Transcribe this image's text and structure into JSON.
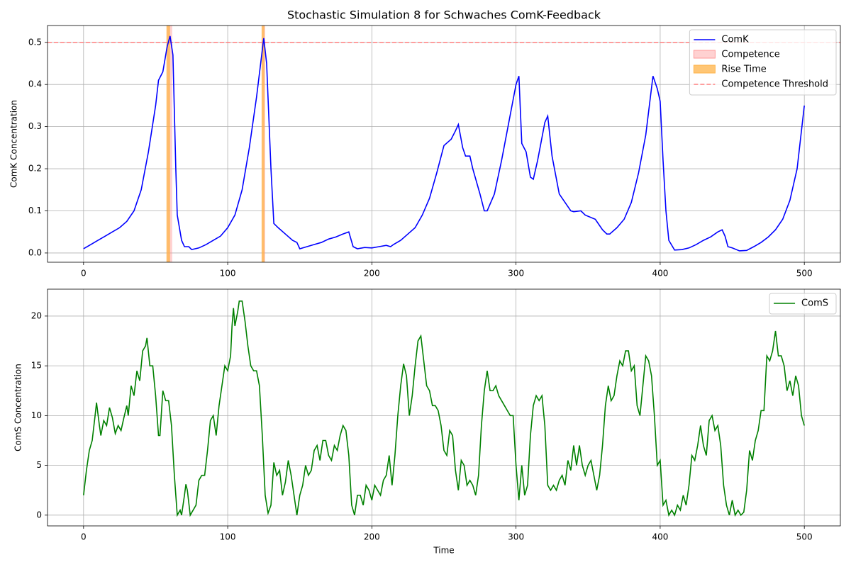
{
  "chart_data": [
    {
      "type": "line",
      "title": "Stochastic Simulation 8 for Schwaches ComK-Feedback",
      "ylabel": "ComK Concentration",
      "xlim": [
        -25,
        525
      ],
      "xticks": [
        0,
        100,
        200,
        300,
        400,
        500
      ],
      "ylim": [
        -0.022,
        0.54
      ],
      "yticks": [
        {
          "value": 0,
          "label": "0.0"
        },
        0.1,
        0.2,
        0.3,
        0.4,
        0.5
      ],
      "grid": true,
      "legend": "upper right",
      "x": [
        0,
        5,
        10,
        15,
        20,
        25,
        30,
        35,
        40,
        45,
        50,
        52,
        55,
        58,
        60,
        62,
        64,
        65,
        68,
        70,
        73,
        75,
        80,
        85,
        90,
        95,
        100,
        105,
        110,
        115,
        120,
        125,
        127,
        130,
        132,
        135,
        140,
        145,
        148,
        150,
        155,
        160,
        165,
        170,
        175,
        180,
        184,
        187,
        190,
        195,
        200,
        205,
        210,
        213,
        215,
        220,
        225,
        230,
        235,
        240,
        245,
        250,
        255,
        258,
        260,
        263,
        265,
        268,
        270,
        275,
        278,
        280,
        285,
        290,
        295,
        300,
        302,
        304,
        307,
        310,
        312,
        315,
        320,
        322,
        325,
        330,
        335,
        338,
        340,
        345,
        348,
        355,
        360,
        363,
        365,
        370,
        375,
        380,
        385,
        390,
        395,
        398,
        400,
        402,
        404,
        406,
        410,
        415,
        420,
        425,
        430,
        435,
        440,
        443,
        445,
        447,
        450,
        455,
        460,
        465,
        470,
        475,
        480,
        485,
        490,
        495,
        500
      ],
      "series": [
        {
          "name": "ComK",
          "color": "#0000ff",
          "values": [
            0.01,
            0.02,
            0.03,
            0.04,
            0.05,
            0.06,
            0.075,
            0.1,
            0.15,
            0.24,
            0.35,
            0.41,
            0.43,
            0.49,
            0.515,
            0.47,
            0.2,
            0.09,
            0.03,
            0.015,
            0.015,
            0.008,
            0.012,
            0.02,
            0.03,
            0.04,
            0.06,
            0.09,
            0.15,
            0.25,
            0.37,
            0.51,
            0.45,
            0.2,
            0.07,
            0.06,
            0.045,
            0.03,
            0.025,
            0.01,
            0.015,
            0.02,
            0.025,
            0.033,
            0.038,
            0.045,
            0.05,
            0.015,
            0.01,
            0.013,
            0.012,
            0.015,
            0.018,
            0.015,
            0.02,
            0.03,
            0.045,
            0.06,
            0.09,
            0.13,
            0.19,
            0.255,
            0.27,
            0.29,
            0.305,
            0.25,
            0.23,
            0.23,
            0.2,
            0.14,
            0.1,
            0.1,
            0.14,
            0.22,
            0.31,
            0.4,
            0.42,
            0.26,
            0.24,
            0.18,
            0.175,
            0.22,
            0.31,
            0.325,
            0.23,
            0.14,
            0.115,
            0.1,
            0.098,
            0.1,
            0.09,
            0.08,
            0.055,
            0.045,
            0.045,
            0.06,
            0.08,
            0.12,
            0.19,
            0.28,
            0.42,
            0.39,
            0.36,
            0.22,
            0.1,
            0.03,
            0.007,
            0.008,
            0.012,
            0.02,
            0.03,
            0.038,
            0.05,
            0.055,
            0.04,
            0.015,
            0.012,
            0.005,
            0.006,
            0.015,
            0.025,
            0.038,
            0.055,
            0.08,
            0.125,
            0.2,
            0.35
          ]
        }
      ],
      "spans": [
        {
          "name": "Competence",
          "color": "#ff9999",
          "ranges": [
            [
              58,
              61.5
            ],
            [
              124,
              126
            ]
          ]
        },
        {
          "name": "Rise Time",
          "color": "#ffb347",
          "ranges": [
            [
              57.5,
              60
            ],
            [
              123.5,
              125.5
            ]
          ]
        }
      ],
      "hlines": [
        {
          "name": "Competence Threshold",
          "value": 0.5,
          "color": "#ff7f7f"
        }
      ]
    },
    {
      "type": "line",
      "xlabel": "Time",
      "ylabel": "ComS Concentration",
      "xlim": [
        -25,
        525
      ],
      "xticks": [
        0,
        100,
        200,
        300,
        400,
        500
      ],
      "ylim": [
        -1.08,
        22.7
      ],
      "yticks": [
        0,
        5,
        10,
        15,
        20
      ],
      "grid": true,
      "legend": "upper right",
      "x": [
        0,
        2,
        4,
        6,
        8,
        9,
        11,
        12,
        14,
        16,
        18,
        20,
        22,
        24,
        26,
        28,
        30,
        31,
        33,
        35,
        37,
        39,
        41,
        43,
        44,
        46,
        48,
        50,
        52,
        53,
        55,
        57,
        59,
        61,
        63,
        65,
        67,
        68,
        70,
        71,
        72,
        74,
        76,
        78,
        80,
        82,
        84,
        86,
        88,
        90,
        92,
        94,
        96,
        98,
        100,
        102,
        103,
        104,
        105,
        107,
        108,
        110,
        112,
        114,
        116,
        118,
        120,
        122,
        124,
        126,
        128,
        130,
        132,
        134,
        136,
        138,
        140,
        142,
        144,
        146,
        148,
        150,
        152,
        154,
        156,
        158,
        160,
        162,
        164,
        166,
        168,
        170,
        172,
        174,
        176,
        178,
        180,
        182,
        184,
        186,
        188,
        190,
        192,
        194,
        196,
        198,
        200,
        202,
        204,
        206,
        208,
        210,
        212,
        214,
        216,
        218,
        220,
        222,
        224,
        226,
        228,
        230,
        232,
        234,
        236,
        238,
        240,
        242,
        244,
        246,
        248,
        250,
        252,
        254,
        256,
        258,
        260,
        262,
        264,
        266,
        268,
        270,
        272,
        274,
        276,
        278,
        280,
        282,
        284,
        286,
        288,
        290,
        292,
        294,
        296,
        298,
        300,
        302,
        304,
        306,
        308,
        310,
        312,
        314,
        316,
        318,
        320,
        322,
        324,
        326,
        328,
        330,
        332,
        334,
        336,
        338,
        340,
        342,
        344,
        346,
        348,
        350,
        352,
        354,
        356,
        358,
        360,
        362,
        364,
        366,
        368,
        370,
        372,
        374,
        376,
        378,
        380,
        382,
        384,
        386,
        388,
        390,
        392,
        394,
        396,
        398,
        400,
        402,
        404,
        406,
        408,
        410,
        412,
        414,
        416,
        418,
        420,
        422,
        424,
        426,
        428,
        430,
        432,
        434,
        436,
        438,
        440,
        442,
        444,
        446,
        448,
        450,
        452,
        454,
        456,
        458,
        460,
        462,
        464,
        466,
        468,
        470,
        472,
        474,
        476,
        478,
        480,
        482,
        484,
        486,
        488,
        490,
        492,
        494,
        496,
        498,
        500
      ],
      "series": [
        {
          "name": "ComS",
          "color": "#008000",
          "values": [
            2,
            4.5,
            6.5,
            7.5,
            10,
            11.3,
            9,
            8,
            9.5,
            9,
            10.8,
            9.8,
            8.2,
            9,
            8.5,
            9.8,
            11,
            10,
            13,
            12,
            14.5,
            13.5,
            16.5,
            17,
            17.8,
            15,
            15,
            12,
            8,
            8,
            12.5,
            11.5,
            11.5,
            9,
            4,
            0,
            0.5,
            0,
            2,
            3.1,
            2.5,
            0,
            0.5,
            1,
            3.5,
            4,
            4,
            6.5,
            9.5,
            10,
            8,
            11,
            13,
            15,
            14.5,
            16,
            19,
            20.8,
            19,
            20.5,
            21.5,
            21.5,
            19.5,
            17,
            15,
            14.5,
            14.5,
            13,
            8,
            2,
            0.2,
            1,
            5.3,
            4,
            4.5,
            2,
            3.3,
            5.5,
            4,
            2,
            0,
            2,
            3,
            5,
            4,
            4.5,
            6.5,
            7,
            5.5,
            7.5,
            7.5,
            6,
            5.5,
            7,
            6.5,
            8,
            9,
            8.5,
            6,
            1,
            0,
            2,
            2,
            1,
            3,
            2.5,
            1.5,
            3,
            2.5,
            2,
            3.5,
            4,
            6,
            3,
            6,
            10,
            13,
            15.2,
            14,
            10,
            12,
            15,
            17.5,
            18,
            15.5,
            13,
            12.5,
            11,
            11,
            10.5,
            9,
            6.5,
            6,
            8.5,
            8,
            4.5,
            2.5,
            5.5,
            5,
            3,
            3.5,
            3,
            2,
            4,
            9,
            12.5,
            14.5,
            12.5,
            12.5,
            13,
            12,
            11.5,
            11,
            10.5,
            10,
            10,
            5,
            1.5,
            5,
            2,
            3,
            8,
            11,
            12,
            11.5,
            12,
            9,
            3,
            2.5,
            3,
            2.5,
            3.5,
            4,
            3,
            5.5,
            4.5,
            7,
            5,
            7,
            5,
            4,
            5,
            5.5,
            4,
            2.5,
            4,
            7,
            11,
            13,
            11.5,
            12,
            14,
            15.5,
            15,
            16.5,
            16.5,
            14.5,
            15,
            11,
            10,
            13,
            16,
            15.5,
            14,
            10,
            5,
            5.5,
            1,
            1.5,
            0,
            0.5,
            0,
            1,
            0.5,
            2,
            1,
            3,
            6,
            5.5,
            7,
            9,
            7,
            6,
            9.5,
            10,
            8.5,
            9,
            7,
            3,
            1,
            0,
            1.5,
            0,
            0.5,
            0,
            0.3,
            2.5,
            6.5,
            5.5,
            7.5,
            8.5,
            10.5,
            10.5,
            16,
            15.5,
            16.5,
            18.5,
            16,
            16,
            15,
            12.5,
            13.5,
            12,
            14,
            13,
            10,
            9
          ]
        }
      ]
    }
  ]
}
